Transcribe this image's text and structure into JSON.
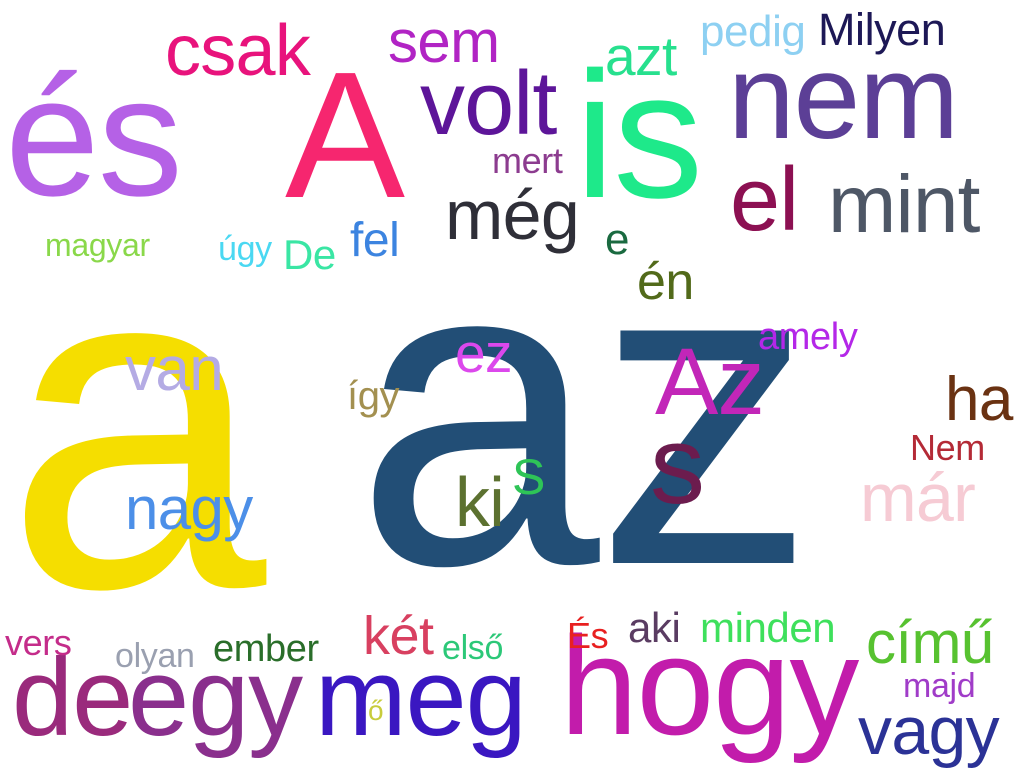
{
  "words": [
    {
      "text": "az",
      "color": "#224e76"
    },
    {
      "text": "a",
      "color": "#f5de00"
    },
    {
      "text": "és",
      "color": "#b561e6"
    },
    {
      "text": "A",
      "color": "#f6266f"
    },
    {
      "text": "is",
      "color": "#1ee98a"
    },
    {
      "text": "nem",
      "color": "#5c3f96"
    },
    {
      "text": "hogy",
      "color": "#c21cab"
    },
    {
      "text": "meg",
      "color": "#3a17c1"
    },
    {
      "text": "egy",
      "color": "#8a2f8d"
    },
    {
      "text": "de",
      "color": "#9a2a7c"
    },
    {
      "text": "volt",
      "color": "#5d1599"
    },
    {
      "text": "mint",
      "color": "#4e5766"
    },
    {
      "text": "el",
      "color": "#8c1052"
    },
    {
      "text": "Az",
      "color": "#c226b8"
    },
    {
      "text": "s",
      "color": "#6c1c4e"
    },
    {
      "text": "csak",
      "color": "#e8137c"
    },
    {
      "text": "sem",
      "color": "#b124c4"
    },
    {
      "text": "azt",
      "color": "#27e08e"
    },
    {
      "text": "még",
      "color": "#2f2f38"
    },
    {
      "text": "vagy",
      "color": "#2b3296"
    },
    {
      "text": "ha",
      "color": "#6a3212"
    },
    {
      "text": "van",
      "color": "#b4abe4"
    },
    {
      "text": "nagy",
      "color": "#4c8fe8"
    },
    {
      "text": "ki",
      "color": "#5c7130"
    },
    {
      "text": "S",
      "color": "#2ec457"
    },
    {
      "text": "már",
      "color": "#f6cbd4"
    },
    {
      "text": "című",
      "color": "#57c230"
    },
    {
      "text": "ez",
      "color": "#dc48ec"
    },
    {
      "text": "én",
      "color": "#526a1a"
    },
    {
      "text": "Milyen",
      "color": "#1d1856"
    },
    {
      "text": "pedig",
      "color": "#8dd0f2"
    },
    {
      "text": "mert",
      "color": "#8c3c8f"
    },
    {
      "text": "fel",
      "color": "#3c84e0"
    },
    {
      "text": "De",
      "color": "#3ae6a4"
    },
    {
      "text": "úgy",
      "color": "#4ad8f2"
    },
    {
      "text": "magyar",
      "color": "#8ad84a"
    },
    {
      "text": "e",
      "color": "#1a6a40"
    },
    {
      "text": "amely",
      "color": "#b427e8"
    },
    {
      "text": "így",
      "color": "#a39050"
    },
    {
      "text": "Nem",
      "color": "#b42a36"
    },
    {
      "text": "két",
      "color": "#d84060"
    },
    {
      "text": "első",
      "color": "#2cc878"
    },
    {
      "text": "aki",
      "color": "#5a3c62"
    },
    {
      "text": "minden",
      "color": "#3ee05c"
    },
    {
      "text": "És",
      "color": "#e82020"
    },
    {
      "text": "vers",
      "color": "#c42c8a"
    },
    {
      "text": "olyan",
      "color": "#9aa0b0"
    },
    {
      "text": "ember",
      "color": "#2a6e2a"
    },
    {
      "text": "ő",
      "color": "#c8cc3c"
    },
    {
      "text": "majd",
      "color": "#a03cc8"
    }
  ]
}
